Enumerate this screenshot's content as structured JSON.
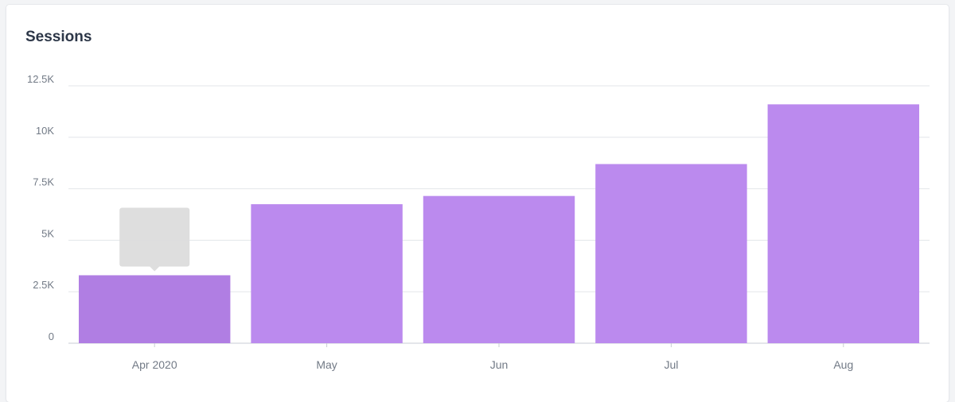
{
  "card": {
    "title": "Sessions"
  },
  "colors": {
    "bar": "#bb8aee",
    "bar_hover": "#b07ee3",
    "grid": "#e3e6ea",
    "axis_label": "#727a86",
    "tooltip_bg": "#dcdcdc"
  },
  "chart_data": {
    "type": "bar",
    "title": "Sessions",
    "categories": [
      "Apr 2020",
      "May",
      "Jun",
      "Jul",
      "Aug"
    ],
    "values": [
      3300,
      6750,
      7150,
      8700,
      11600
    ],
    "ylim": [
      0,
      12500
    ],
    "yticks": [
      0,
      2500,
      5000,
      7500,
      10000,
      12500
    ],
    "ytick_labels": [
      "0",
      "2.5K",
      "5K",
      "7.5K",
      "10K",
      "12.5K"
    ],
    "xlabel": "",
    "ylabel": "",
    "grid": true,
    "legend": "none",
    "hovered_index": 0
  }
}
